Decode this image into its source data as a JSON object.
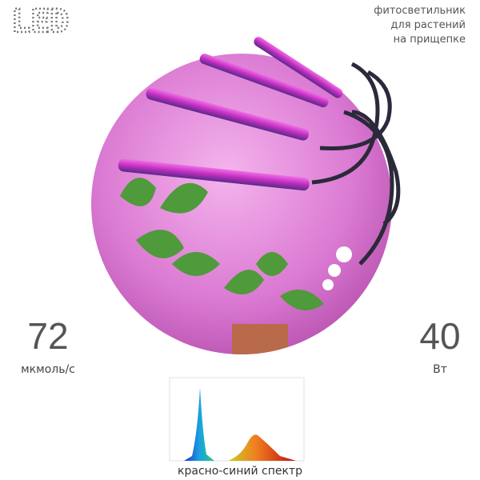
{
  "header": {
    "logo": "LED",
    "description": [
      "фитосветильник",
      "для растений",
      "на прищепке"
    ]
  },
  "stats": [
    {
      "value": "72",
      "unit": "мкмоль/с"
    },
    {
      "value": "40",
      "unit": "Вт"
    }
  ],
  "spectrum": {
    "caption": "красно-синий спектр"
  }
}
